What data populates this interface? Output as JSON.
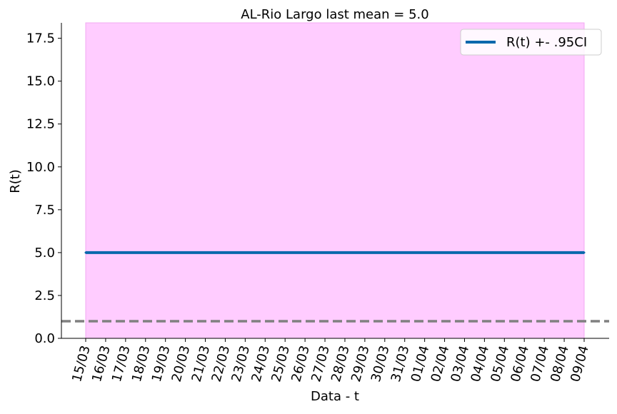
{
  "chart_data": {
    "type": "line",
    "title": "AL-Rio Largo last mean = 5.0",
    "xlabel": "Data - t",
    "ylabel": "R(t)",
    "categories": [
      "15/03",
      "16/03",
      "17/03",
      "18/03",
      "19/03",
      "20/03",
      "21/03",
      "22/03",
      "23/03",
      "24/03",
      "25/03",
      "26/03",
      "27/03",
      "28/03",
      "29/03",
      "30/03",
      "31/03",
      "01/04",
      "02/04",
      "03/04",
      "04/04",
      "05/04",
      "06/04",
      "07/04",
      "08/04",
      "09/04"
    ],
    "ylim": [
      0,
      18.4
    ],
    "yticks": [
      "0.0",
      "2.5",
      "5.0",
      "7.5",
      "10.0",
      "12.5",
      "15.0",
      "17.5"
    ],
    "series": [
      {
        "name": "R(t) +- .95CI",
        "values": [
          5,
          5,
          5,
          5,
          5,
          5,
          5,
          5,
          5,
          5,
          5,
          5,
          5,
          5,
          5,
          5,
          5,
          5,
          5,
          5,
          5,
          5,
          5,
          5,
          5,
          5
        ],
        "color": "#0868ac"
      }
    ],
    "confidence_band": {
      "lower": [
        0,
        0,
        0,
        0,
        0,
        0,
        0,
        0,
        0,
        0,
        0,
        0,
        0,
        0,
        0,
        0,
        0,
        0,
        0,
        0,
        0,
        0,
        0,
        0,
        0,
        0
      ],
      "upper": [
        18.4,
        18.4,
        18.4,
        18.4,
        18.4,
        18.4,
        18.4,
        18.4,
        18.4,
        18.4,
        18.4,
        18.4,
        18.4,
        18.4,
        18.4,
        18.4,
        18.4,
        18.4,
        18.4,
        18.4,
        18.4,
        18.4,
        18.4,
        18.4,
        18.4,
        18.4
      ],
      "color": "#ffccff"
    },
    "reference_line": {
      "y": 1.0,
      "color": "#808080",
      "style": "dashed"
    },
    "legend": {
      "position": "top-right"
    },
    "grid": false
  }
}
